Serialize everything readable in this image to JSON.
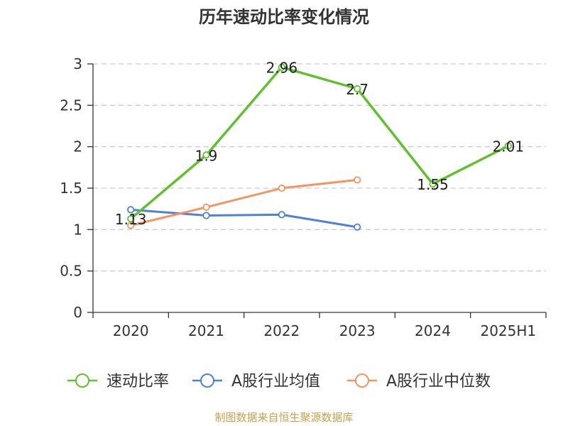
{
  "chart_data": {
    "type": "line",
    "title": "历年速动比率变化情况",
    "categories": [
      "2020",
      "2021",
      "2022",
      "2023",
      "2024",
      "2025H1"
    ],
    "ylim": [
      0,
      3
    ],
    "yticks": [
      "0",
      "0.5",
      "1",
      "1.5",
      "2",
      "2.5",
      "3"
    ],
    "ytick_values": [
      0,
      0.5,
      1,
      1.5,
      2,
      2.5,
      3
    ],
    "grid": true,
    "legend_position": "bottom",
    "series": [
      {
        "name": "速动比率",
        "color": "#5fc12c",
        "values": [
          1.13,
          1.9,
          2.96,
          2.7,
          1.55,
          2.01
        ],
        "labels": [
          "1.13",
          "1.9",
          "2.96",
          "2.7",
          "1.55",
          "2.01"
        ]
      },
      {
        "name": "A股行业均值",
        "color": "#4f81d9",
        "values": [
          1.24,
          1.17,
          1.18,
          1.03,
          null,
          null
        ]
      },
      {
        "name": "A股行业中位数",
        "color": "#f59461",
        "values": [
          1.05,
          1.27,
          1.5,
          1.6,
          null,
          null
        ]
      }
    ]
  },
  "source": "制图数据来自恒生聚源数据库"
}
